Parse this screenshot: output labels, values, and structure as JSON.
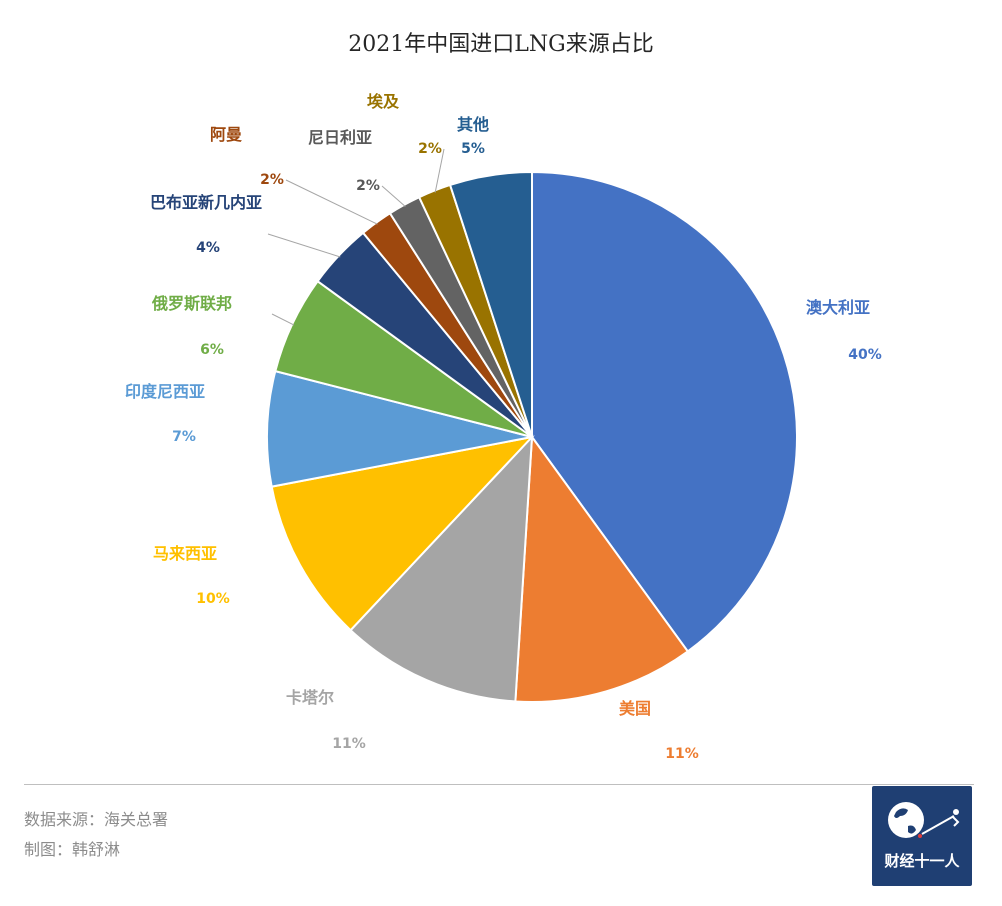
{
  "chart_data": {
    "type": "pie",
    "title": "2021年中国进口LNG来源占比",
    "slices": [
      {
        "name": "澳大利亚",
        "value": 40,
        "label": "40%",
        "color": "#4472c4"
      },
      {
        "name": "美国",
        "value": 11,
        "label": "11%",
        "color": "#ed7d31"
      },
      {
        "name": "卡塔尔",
        "value": 11,
        "label": "11%",
        "color": "#a5a5a5"
      },
      {
        "name": "马来西亚",
        "value": 10,
        "label": "10%",
        "color": "#ffc000"
      },
      {
        "name": "印度尼西亚",
        "value": 7,
        "label": "7%",
        "color": "#5b9bd5"
      },
      {
        "name": "俄罗斯联邦",
        "value": 6,
        "label": "6%",
        "color": "#70ad47"
      },
      {
        "name": "巴布亚新几内亚",
        "value": 4,
        "label": "4%",
        "color": "#264478"
      },
      {
        "name": "阿曼",
        "value": 2,
        "label": "2%",
        "color": "#9e480e"
      },
      {
        "name": "尼日利亚",
        "value": 2,
        "label": "2%",
        "color": "#636363"
      },
      {
        "name": "埃及",
        "value": 2,
        "label": "2%",
        "color": "#997300"
      },
      {
        "name": "其他",
        "value": 5,
        "label": "5%",
        "color": "#255e91"
      }
    ],
    "label_colors": [
      "#4472c4",
      "#ed7d31",
      "#a5a5a5",
      "#ffc000",
      "#5b9bd5",
      "#70ad47",
      "#264478",
      "#9e480e",
      "#636363",
      "#997300",
      "#255e91"
    ]
  },
  "footer": {
    "source": "数据来源：海关总署",
    "author": "制图：韩舒淋"
  },
  "logo": {
    "text": "财经十一人",
    "icon": "globe-icon"
  }
}
